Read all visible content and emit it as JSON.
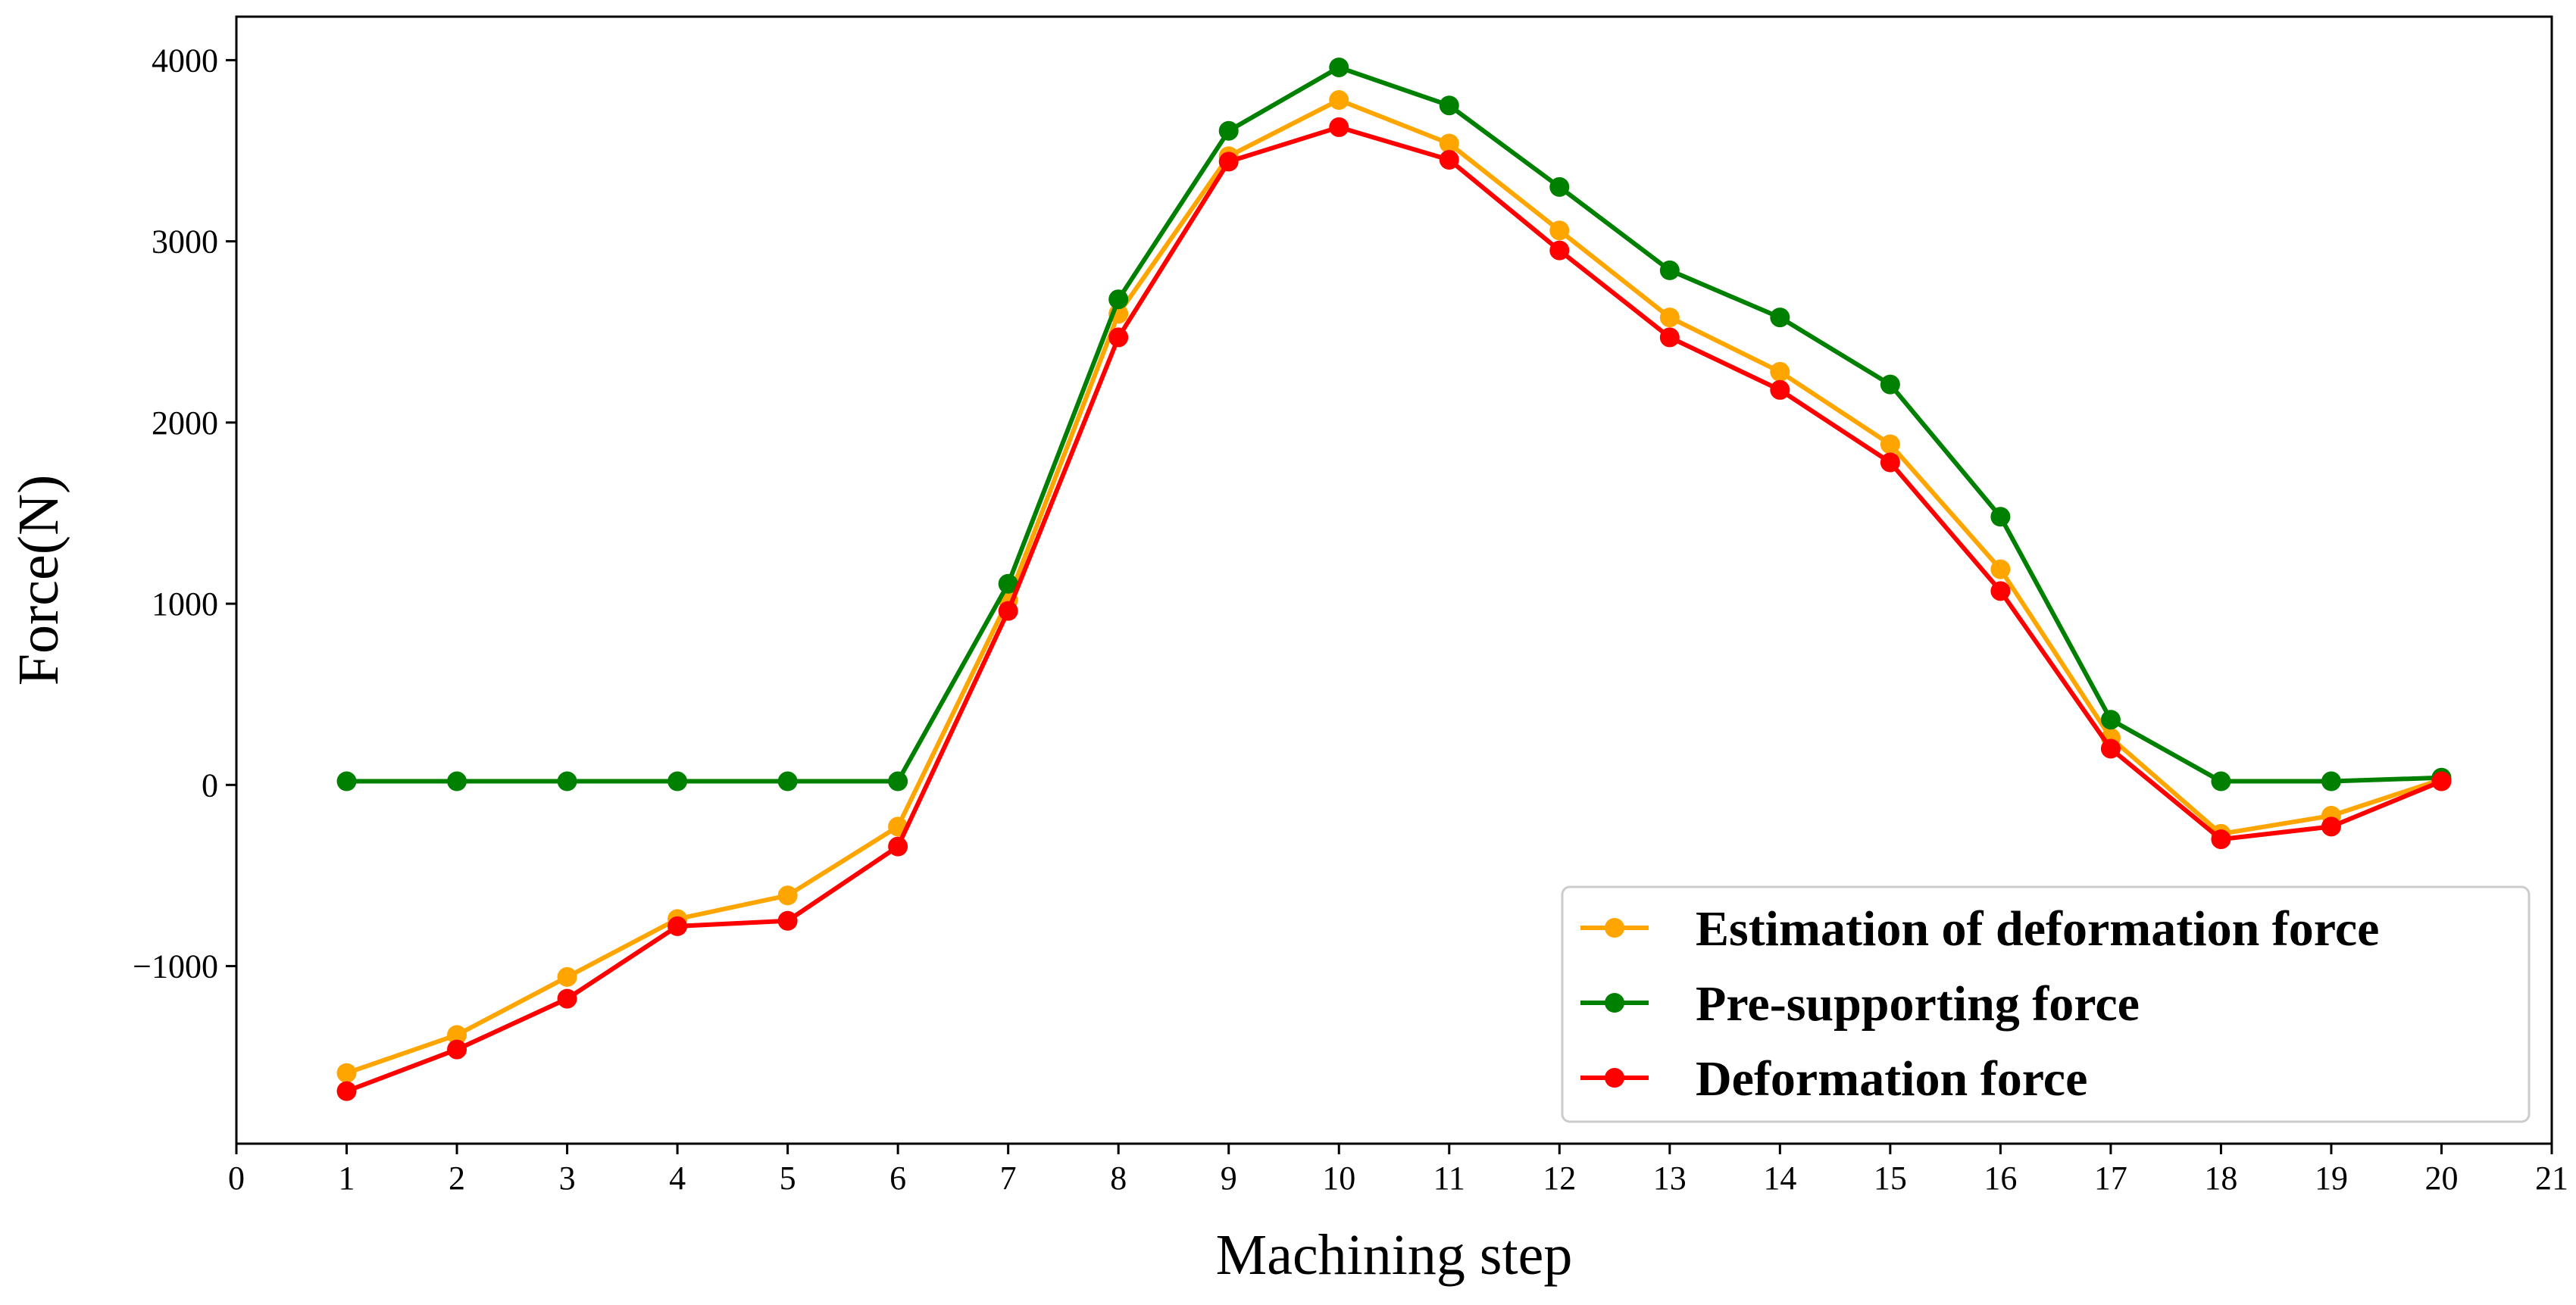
{
  "chart_data": {
    "type": "line",
    "title": "",
    "xlabel": "Machining step",
    "ylabel": "Force(N)",
    "xlim": [
      0,
      21
    ],
    "ylim": [
      -1980,
      4240
    ],
    "x_ticks": [
      0,
      1,
      2,
      3,
      4,
      5,
      6,
      7,
      8,
      9,
      10,
      11,
      12,
      13,
      14,
      15,
      16,
      17,
      18,
      19,
      20,
      21
    ],
    "y_ticks": [
      -1000,
      0,
      1000,
      2000,
      3000,
      4000
    ],
    "y_tick_labels": [
      "−1000",
      "0",
      "1000",
      "2000",
      "3000",
      "4000"
    ],
    "grid": false,
    "legend_position": "lower-right",
    "x": [
      1,
      2,
      3,
      4,
      5,
      6,
      7,
      8,
      9,
      10,
      11,
      12,
      13,
      14,
      15,
      16,
      17,
      18,
      19,
      20
    ],
    "series": [
      {
        "name": "Estimation of deformation force",
        "color": "#FFA500",
        "values": [
          -1590,
          -1380,
          -1060,
          -740,
          -610,
          -230,
          1020,
          2600,
          3470,
          3780,
          3540,
          3060,
          2580,
          2280,
          1880,
          1190,
          260,
          -270,
          -170,
          30
        ]
      },
      {
        "name": "Pre-supporting force",
        "color": "#008000",
        "values": [
          20,
          20,
          20,
          20,
          20,
          20,
          1110,
          2680,
          3610,
          3960,
          3750,
          3300,
          2840,
          2580,
          2210,
          1480,
          360,
          20,
          20,
          40
        ]
      },
      {
        "name": "Deformation force",
        "color": "#FF0000",
        "values": [
          -1690,
          -1460,
          -1180,
          -780,
          -750,
          -340,
          960,
          2470,
          3440,
          3630,
          3450,
          2950,
          2470,
          2180,
          1780,
          1070,
          200,
          -300,
          -230,
          20
        ]
      }
    ]
  }
}
